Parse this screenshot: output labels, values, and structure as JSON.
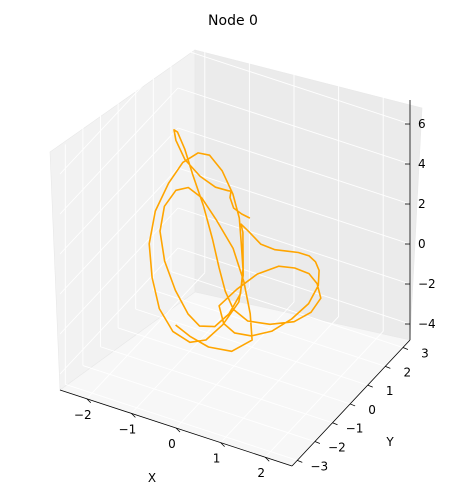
{
  "chart_data": {
    "type": "line",
    "projection": "3d",
    "title": "Node 0",
    "xlabel": "X",
    "ylabel": "Y",
    "zlabel": "",
    "xlim": [
      -2.6,
      2.6
    ],
    "ylim": [
      -3.3,
      3.4
    ],
    "zlim": [
      -4.8,
      7.2
    ],
    "x_ticks": [
      "−2",
      "−1",
      "0",
      "1",
      "2"
    ],
    "y_ticks": [
      "−3",
      "−2",
      "−1",
      "0",
      "1",
      "2",
      "3"
    ],
    "z_ticks": [
      "−4",
      "−2",
      "0",
      "2",
      "4",
      "6"
    ],
    "grid": true,
    "series": [
      {
        "color": "#ffa500",
        "x": [
          -0.6,
          -0.4,
          -0.1,
          0.3,
          0.6,
          0.4,
          0.1,
          -0.3,
          -0.8,
          -1.2,
          -1.5,
          -1.7,
          -1.8,
          -1.7,
          -1.4,
          -1.0,
          -0.6,
          -0.3,
          0.0,
          0.2,
          0.3,
          0.2,
          0.0,
          -0.2,
          -0.5,
          -0.9,
          -1.3,
          -1.6,
          -1.9,
          -2.1,
          -2.2,
          -2.1,
          -1.8,
          -1.4,
          -0.9,
          -0.4,
          0.0,
          0.3,
          0.5,
          0.4,
          0.2,
          0.0,
          -0.2,
          -0.1,
          0.2,
          0.6,
          1.0,
          1.4,
          1.8,
          2.1,
          2.3,
          2.4,
          2.3,
          2.0,
          1.6,
          1.1,
          0.6,
          0.2,
          -0.1,
          0.1,
          0.4,
          0.8,
          1.2,
          1.6,
          1.9,
          2.1,
          2.0,
          1.7,
          1.2,
          0.7,
          0.3,
          0.0,
          -0.3,
          -0.6,
          -1.0,
          -1.4,
          -1.7,
          -1.9,
          -1.9,
          -1.7,
          -1.3,
          -0.8,
          -0.3,
          0.1,
          0.3,
          0.4,
          0.5,
          0.7,
          1.0,
          1.3
        ],
        "y": [
          -1.8,
          -1.5,
          -1.2,
          -0.9,
          -0.5,
          -0.1,
          0.3,
          0.7,
          1.0,
          1.2,
          1.2,
          1.0,
          0.6,
          0.1,
          -0.4,
          -0.8,
          -1.1,
          -1.2,
          -1.1,
          -0.8,
          -0.4,
          0.0,
          0.4,
          0.8,
          1.2,
          1.6,
          1.9,
          2.0,
          1.9,
          1.6,
          1.1,
          0.5,
          -0.1,
          -0.7,
          -1.2,
          -1.5,
          -1.6,
          -1.4,
          -1.0,
          -0.5,
          0.0,
          0.5,
          0.9,
          1.1,
          1.0,
          0.8,
          0.5,
          0.1,
          -0.3,
          -0.7,
          -1.0,
          -1.3,
          -1.6,
          -1.8,
          -1.9,
          -1.8,
          -1.5,
          -1.1,
          -0.6,
          -0.1,
          0.3,
          0.5,
          0.4,
          0.2,
          -0.1,
          -0.4,
          -0.7,
          -0.9,
          -1.0,
          -1.0,
          -0.8,
          -0.5,
          -0.1,
          0.3,
          0.8,
          1.2,
          1.5,
          1.6,
          1.4,
          1.0,
          0.5,
          0.1,
          -0.3,
          -0.6,
          -0.9,
          -1.2,
          -1.5,
          -1.8,
          -2.1,
          -2.4
        ],
        "z": [
          -1.5,
          -2.2,
          -2.8,
          -3.0,
          -2.6,
          -1.8,
          -0.8,
          0.2,
          1.0,
          1.6,
          1.9,
          1.8,
          1.3,
          0.6,
          -0.2,
          -1.0,
          -1.6,
          -1.9,
          -1.8,
          -1.3,
          -0.6,
          0.2,
          1.0,
          1.7,
          2.3,
          2.8,
          3.0,
          2.8,
          2.2,
          1.3,
          0.3,
          -0.7,
          -1.6,
          -2.3,
          -2.6,
          -2.5,
          -2.0,
          -1.2,
          -0.3,
          0.5,
          1.1,
          1.4,
          1.3,
          0.8,
          0.5,
          0.7,
          1.2,
          1.8,
          2.3,
          2.6,
          2.6,
          2.2,
          1.5,
          0.7,
          -0.1,
          -0.8,
          -1.3,
          -1.5,
          -1.3,
          -0.8,
          -0.2,
          0.3,
          0.6,
          0.8,
          0.8,
          0.5,
          0.0,
          -0.5,
          -0.9,
          -1.1,
          -1.0,
          -0.6,
          0.0,
          0.8,
          1.7,
          2.6,
          3.4,
          4.0,
          4.3,
          4.3,
          4.1,
          4.0,
          4.2,
          4.6,
          5.0,
          5.3,
          5.4,
          5.3,
          5.5,
          5.8
        ]
      }
    ]
  }
}
